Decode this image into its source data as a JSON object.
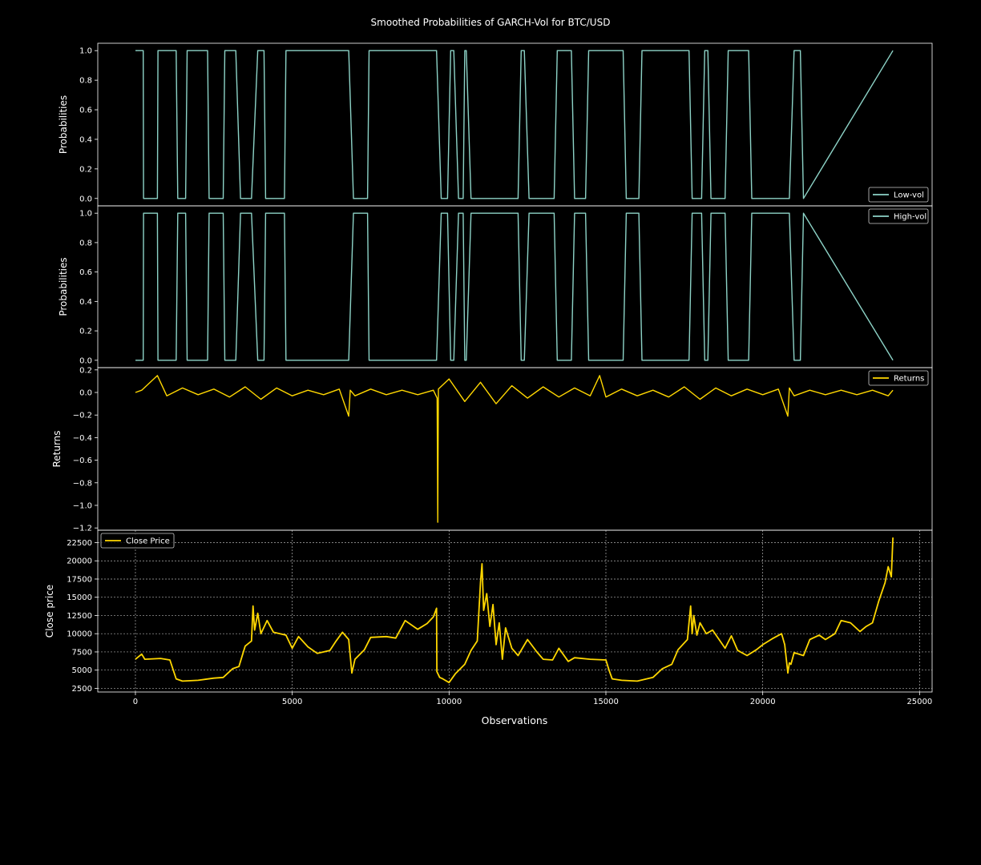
{
  "title": "Smoothed Probabilities of GARCH-Vol for BTC/USD",
  "xlabel": "Observations",
  "colors": {
    "background": "#000000",
    "foreground": "#ffffff",
    "teal": "#8dd3c7",
    "gold": "#ffd700",
    "grid": "#b0b0b0"
  },
  "chart_data": [
    {
      "type": "line",
      "panel": "low-vol",
      "ylabel": "Probabilities",
      "ylim": [
        -0.05,
        1.05
      ],
      "yticks": [
        0.0,
        0.2,
        0.4,
        0.6,
        0.8,
        1.0
      ],
      "ytick_labels": [
        "0.0",
        "0.2",
        "0.4",
        "0.6",
        "0.8",
        "1.0"
      ],
      "legend": {
        "label": "Low-vol",
        "position": "bottom-right"
      },
      "grid": false,
      "series": [
        {
          "name": "Low-vol",
          "color": "#8dd3c7",
          "x": [
            0,
            250,
            260,
            700,
            720,
            1300,
            1350,
            1600,
            1650,
            2300,
            2350,
            2800,
            2850,
            3200,
            3350,
            3700,
            3900,
            4100,
            4150,
            4750,
            4800,
            5150,
            5200,
            6800,
            6950,
            7400,
            7450,
            7550,
            7600,
            9600,
            9750,
            9950,
            10050,
            10150,
            10300,
            10450,
            10500,
            10550,
            10700,
            10850,
            10900,
            12200,
            12300,
            12400,
            12550,
            13350,
            13450,
            13900,
            14000,
            14350,
            14450,
            15550,
            15650,
            16050,
            16150,
            16800,
            16900,
            17650,
            17750,
            18050,
            18150,
            18250,
            18350,
            18800,
            18900,
            19550,
            19650,
            20850,
            21000,
            21200,
            21300,
            24150
          ],
          "y": [
            1,
            1,
            0,
            0,
            1,
            1,
            0,
            0,
            1,
            1,
            0,
            0,
            1,
            1,
            0,
            0,
            1,
            1,
            0,
            0,
            1,
            1,
            1,
            1,
            0,
            0,
            1,
            1,
            1,
            1,
            0,
            0,
            1,
            1,
            0,
            0,
            1,
            1,
            0,
            0,
            0,
            0,
            1,
            1,
            0,
            0,
            1,
            1,
            0,
            0,
            1,
            1,
            0,
            0,
            1,
            1,
            1,
            1,
            0,
            0,
            1,
            1,
            0,
            0,
            1,
            1,
            0,
            0,
            1,
            1,
            0,
            1
          ]
        }
      ]
    },
    {
      "type": "line",
      "panel": "high-vol",
      "ylabel": "Probabilities",
      "ylim": [
        -0.05,
        1.05
      ],
      "yticks": [
        0.0,
        0.2,
        0.4,
        0.6,
        0.8,
        1.0
      ],
      "ytick_labels": [
        "0.0",
        "0.2",
        "0.4",
        "0.6",
        "0.8",
        "1.0"
      ],
      "legend": {
        "label": "High-vol",
        "position": "top-right"
      },
      "grid": false,
      "series": [
        {
          "name": "High-vol",
          "color": "#8dd3c7",
          "x": [
            0,
            250,
            260,
            700,
            720,
            1300,
            1350,
            1600,
            1650,
            2300,
            2350,
            2800,
            2850,
            3200,
            3350,
            3700,
            3900,
            4100,
            4150,
            4750,
            4800,
            5150,
            5200,
            6800,
            6950,
            7400,
            7450,
            7550,
            7600,
            9600,
            9750,
            9950,
            10050,
            10150,
            10300,
            10450,
            10500,
            10550,
            10700,
            10850,
            10900,
            12200,
            12300,
            12400,
            12550,
            13350,
            13450,
            13900,
            14000,
            14350,
            14450,
            15550,
            15650,
            16050,
            16150,
            16800,
            16900,
            17650,
            17750,
            18050,
            18150,
            18250,
            18350,
            18800,
            18900,
            19550,
            19650,
            20850,
            21000,
            21200,
            21300,
            24150
          ],
          "y": [
            0,
            0,
            1,
            1,
            0,
            0,
            1,
            1,
            0,
            0,
            1,
            1,
            0,
            0,
            1,
            1,
            0,
            0,
            1,
            1,
            0,
            0,
            0,
            0,
            1,
            1,
            0,
            0,
            0,
            0,
            1,
            1,
            0,
            0,
            1,
            1,
            0,
            0,
            1,
            1,
            1,
            1,
            0,
            0,
            1,
            1,
            0,
            0,
            1,
            1,
            0,
            0,
            1,
            1,
            0,
            0,
            0,
            0,
            1,
            1,
            0,
            0,
            1,
            1,
            0,
            0,
            1,
            1,
            0,
            0,
            1,
            0
          ]
        }
      ]
    },
    {
      "type": "line",
      "panel": "returns",
      "ylabel": "Returns",
      "ylim": [
        -1.22,
        0.22
      ],
      "yticks": [
        -1.2,
        -1.0,
        -0.8,
        -0.6,
        -0.4,
        -0.2,
        0.0,
        0.2
      ],
      "ytick_labels": [
        "−1.2",
        "−1.0",
        "−0.8",
        "−0.6",
        "−0.4",
        "−0.2",
        "0.0",
        "0.2"
      ],
      "legend": {
        "label": "Returns",
        "position": "top-right"
      },
      "grid": false,
      "series": [
        {
          "name": "Returns",
          "color": "#ffd700",
          "x": [
            0,
            200,
            700,
            1000,
            1500,
            2000,
            2500,
            3000,
            3500,
            4000,
            4500,
            5000,
            5500,
            6000,
            6500,
            6800,
            6850,
            7000,
            7500,
            8000,
            8500,
            9000,
            9500,
            9620,
            9640,
            9660,
            10000,
            10500,
            11000,
            11500,
            12000,
            12500,
            13000,
            13500,
            14000,
            14500,
            14800,
            15000,
            15500,
            16000,
            16500,
            17000,
            17500,
            18000,
            18500,
            19000,
            19500,
            20000,
            20500,
            20800,
            20850,
            21000,
            21500,
            22000,
            22500,
            23000,
            23500,
            24000,
            24150
          ],
          "y": [
            0,
            0.02,
            0.15,
            -0.03,
            0.04,
            -0.02,
            0.03,
            -0.04,
            0.05,
            -0.06,
            0.04,
            -0.03,
            0.02,
            -0.02,
            0.03,
            -0.21,
            0.02,
            -0.03,
            0.03,
            -0.02,
            0.02,
            -0.02,
            0.02,
            -0.05,
            -1.15,
            0.03,
            0.12,
            -0.08,
            0.09,
            -0.1,
            0.06,
            -0.05,
            0.05,
            -0.04,
            0.04,
            -0.03,
            0.15,
            -0.04,
            0.03,
            -0.03,
            0.02,
            -0.04,
            0.05,
            -0.06,
            0.04,
            -0.03,
            0.03,
            -0.02,
            0.03,
            -0.21,
            0.04,
            -0.03,
            0.02,
            -0.02,
            0.02,
            -0.02,
            0.02,
            -0.03,
            0.02
          ]
        }
      ]
    },
    {
      "type": "line",
      "panel": "close-price",
      "ylabel": "Close price",
      "ylim": [
        2000,
        24200
      ],
      "yticks": [
        2500,
        5000,
        7500,
        10000,
        12500,
        15000,
        17500,
        20000,
        22500
      ],
      "ytick_labels": [
        "2500",
        "5000",
        "7500",
        "10000",
        "12500",
        "15000",
        "17500",
        "20000",
        "22500"
      ],
      "legend": {
        "label": "Close Price",
        "position": "top-left"
      },
      "grid": true,
      "series": [
        {
          "name": "Close Price",
          "color": "#ffd700",
          "x": [
            0,
            200,
            300,
            800,
            1100,
            1300,
            1500,
            2000,
            2500,
            2800,
            3100,
            3300,
            3500,
            3700,
            3750,
            3800,
            3900,
            4000,
            4200,
            4400,
            4800,
            5000,
            5200,
            5500,
            5800,
            6200,
            6400,
            6600,
            6800,
            6900,
            7000,
            7300,
            7500,
            8000,
            8300,
            8600,
            9000,
            9300,
            9500,
            9600,
            9610,
            9700,
            9800,
            10000,
            10200,
            10500,
            10700,
            10900,
            11000,
            11050,
            11100,
            11200,
            11300,
            11400,
            11500,
            11600,
            11700,
            11800,
            12000,
            12200,
            12500,
            12800,
            13000,
            13300,
            13500,
            13800,
            14000,
            14500,
            15000,
            15100,
            15200,
            15500,
            16000,
            16500,
            16800,
            17100,
            17300,
            17600,
            17700,
            17750,
            17800,
            17900,
            18000,
            18200,
            18400,
            18800,
            19000,
            19200,
            19500,
            19800,
            20000,
            20300,
            20600,
            20700,
            20800,
            20850,
            20900,
            21000,
            21300,
            21500,
            21800,
            22000,
            22300,
            22500,
            22800,
            23100,
            23300,
            23500,
            23700,
            23900,
            24000,
            24100,
            24150
          ],
          "y": [
            6500,
            7200,
            6500,
            6600,
            6400,
            3800,
            3500,
            3600,
            3900,
            4000,
            5200,
            5500,
            8300,
            9000,
            13800,
            10500,
            12800,
            10000,
            11800,
            10200,
            9800,
            8000,
            9600,
            8200,
            7300,
            7700,
            9000,
            10200,
            9200,
            4600,
            6500,
            7800,
            9500,
            9600,
            9400,
            11800,
            10600,
            11400,
            12300,
            13500,
            4800,
            4000,
            3800,
            3300,
            4500,
            5800,
            7700,
            9000,
            17000,
            19600,
            13200,
            15500,
            11000,
            14000,
            8500,
            11500,
            6500,
            10800,
            8000,
            7000,
            9200,
            7500,
            6500,
            6400,
            8000,
            6200,
            6700,
            6500,
            6400,
            5000,
            3800,
            3600,
            3500,
            4000,
            5200,
            5800,
            7800,
            9200,
            13800,
            10000,
            12500,
            9800,
            11500,
            10000,
            10500,
            8000,
            9700,
            7700,
            7000,
            7800,
            8500,
            9300,
            10000,
            8500,
            4600,
            6000,
            5800,
            7400,
            7000,
            9200,
            9800,
            9200,
            10000,
            11800,
            11500,
            10300,
            11000,
            11500,
            14500,
            17000,
            19200,
            17800,
            23200
          ]
        }
      ]
    }
  ],
  "xaxis": {
    "xlim": [
      -1200,
      25400
    ],
    "ticks": [
      0,
      5000,
      10000,
      15000,
      20000,
      25000
    ],
    "tick_labels": [
      "0",
      "5000",
      "10000",
      "15000",
      "20000",
      "25000"
    ]
  }
}
